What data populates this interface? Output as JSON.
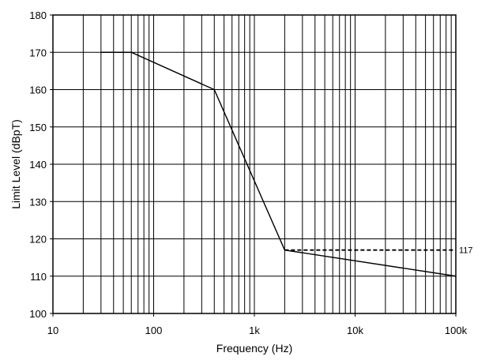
{
  "chart_data": {
    "type": "line",
    "title": "",
    "xlabel": "Frequency (Hz)",
    "ylabel": "Limit Level (dBpT)",
    "xscale": "log",
    "xlim": [
      10,
      100000
    ],
    "ylim": [
      100,
      180
    ],
    "grid": true,
    "x_ticks": [
      {
        "value": 10,
        "label": "10"
      },
      {
        "value": 100,
        "label": "100"
      },
      {
        "value": 1000,
        "label": "1k"
      },
      {
        "value": 10000,
        "label": "10k"
      },
      {
        "value": 100000,
        "label": "100k"
      }
    ],
    "y_ticks": [
      {
        "value": 100,
        "label": "100"
      },
      {
        "value": 110,
        "label": "110"
      },
      {
        "value": 120,
        "label": "120"
      },
      {
        "value": 130,
        "label": "130"
      },
      {
        "value": 140,
        "label": "140"
      },
      {
        "value": 150,
        "label": "150"
      },
      {
        "value": 160,
        "label": "160"
      },
      {
        "value": 170,
        "label": "170"
      },
      {
        "value": 180,
        "label": "180"
      }
    ],
    "series": [
      {
        "style": "solid",
        "color": "#000000",
        "points": [
          {
            "x": 30,
            "y": 170
          },
          {
            "x": 60,
            "y": 170
          },
          {
            "x": 400,
            "y": 160
          },
          {
            "x": 2000,
            "y": 117
          },
          {
            "x": 100000,
            "y": 110
          }
        ]
      },
      {
        "style": "dashed",
        "color": "#000000",
        "points": [
          {
            "x": 2000,
            "y": 117
          },
          {
            "x": 100000,
            "y": 117
          }
        ]
      }
    ],
    "annotations": [
      {
        "text": "117",
        "x": 100000,
        "y": 117
      }
    ]
  }
}
